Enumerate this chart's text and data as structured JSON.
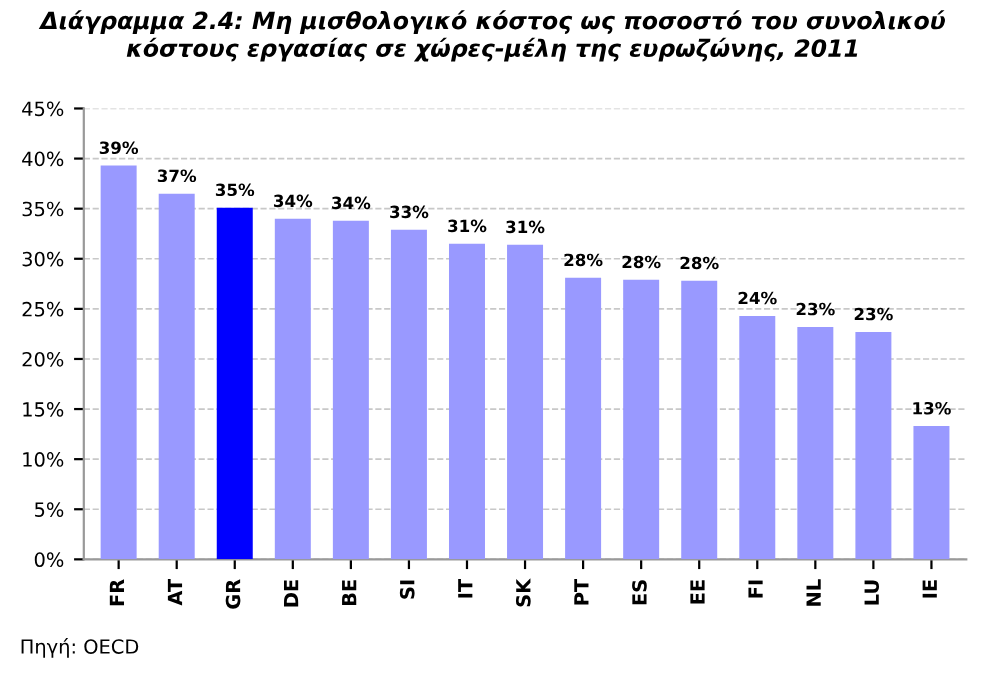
{
  "chart_data": {
    "type": "bar",
    "title": "Διάγραμμα 2.4: Μη μισθολογικό κόστος ως ποσοστό του συνολικού κόστους εργασίας σε χώρες-μέλη της ευρωζώνης, 2011",
    "categories": [
      "FR",
      "AT",
      "GR",
      "DE",
      "BE",
      "SI",
      "IT",
      "SK",
      "PT",
      "ES",
      "EE",
      "FI",
      "NL",
      "LU",
      "IE"
    ],
    "values": [
      39.3,
      36.5,
      35.1,
      34.0,
      33.8,
      32.9,
      31.5,
      31.4,
      28.1,
      27.9,
      27.8,
      24.3,
      23.2,
      22.7,
      13.3
    ],
    "value_labels": [
      "39%",
      "37%",
      "35%",
      "34%",
      "34%",
      "33%",
      "31%",
      "31%",
      "28%",
      "28%",
      "28%",
      "24%",
      "23%",
      "23%",
      "13%"
    ],
    "colors": [
      "#9999ff",
      "#9999ff",
      "#0000ff",
      "#9999ff",
      "#9999ff",
      "#9999ff",
      "#9999ff",
      "#9999ff",
      "#9999ff",
      "#9999ff",
      "#9999ff",
      "#9999ff",
      "#9999ff",
      "#9999ff",
      "#9999ff"
    ],
    "ylim": [
      0,
      45
    ],
    "yticks": [
      {
        "value": 0,
        "label": "0%"
      },
      {
        "value": 5,
        "label": "5%"
      },
      {
        "value": 10,
        "label": "10%"
      },
      {
        "value": 15,
        "label": "15%"
      },
      {
        "value": 20,
        "label": "20%"
      },
      {
        "value": 25,
        "label": "25%"
      },
      {
        "value": 30,
        "label": "30%"
      },
      {
        "value": 35,
        "label": "35%"
      },
      {
        "value": 40,
        "label": "40%"
      },
      {
        "value": 45,
        "label": "45%"
      }
    ],
    "grid": "y",
    "annotations": [
      "Πηγή: OECD"
    ]
  }
}
